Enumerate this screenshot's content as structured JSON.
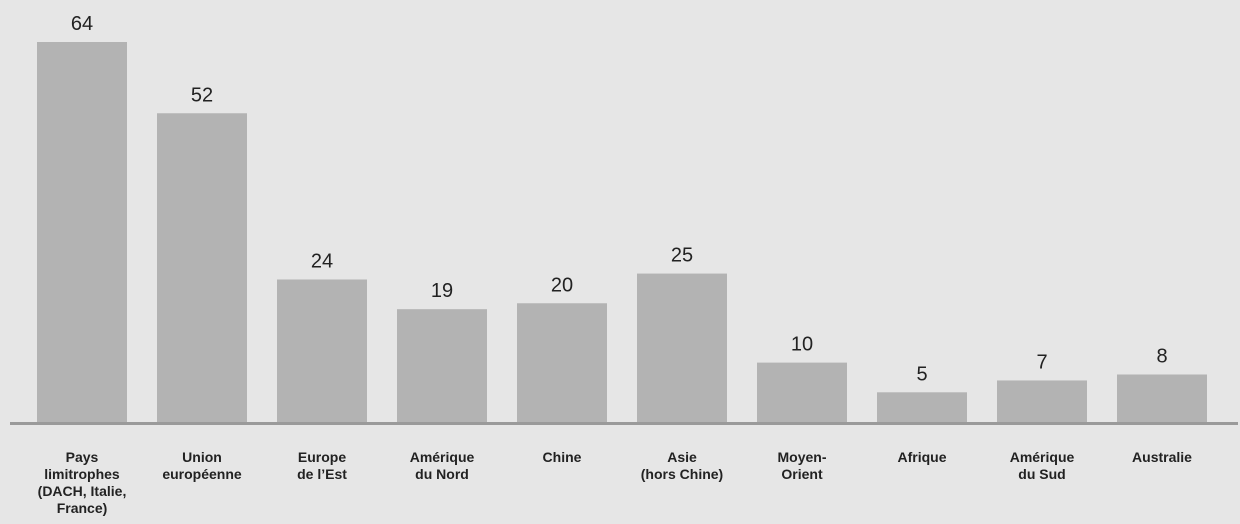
{
  "colors": {
    "background": "#e6e6e6",
    "bar": "#b3b3b3",
    "axis": "#9a9a9a",
    "text": "#222222"
  },
  "chart_data": {
    "type": "bar",
    "categories": [
      [
        "Pays",
        "limitrophes",
        "(DACH, Italie,",
        "France)"
      ],
      [
        "Union",
        "européenne"
      ],
      [
        "Europe",
        "de l’Est"
      ],
      [
        "Amérique",
        "du Nord"
      ],
      [
        "Chine"
      ],
      [
        "Asie",
        "(hors Chine)"
      ],
      [
        "Moyen-",
        "Orient"
      ],
      [
        "Afrique"
      ],
      [
        "Amérique",
        "du Sud"
      ],
      [
        "Australie"
      ]
    ],
    "values": [
      64,
      52,
      24,
      19,
      20,
      25,
      10,
      5,
      7,
      8
    ],
    "ylim": [
      0,
      64
    ],
    "grid": false,
    "legend": "none"
  }
}
